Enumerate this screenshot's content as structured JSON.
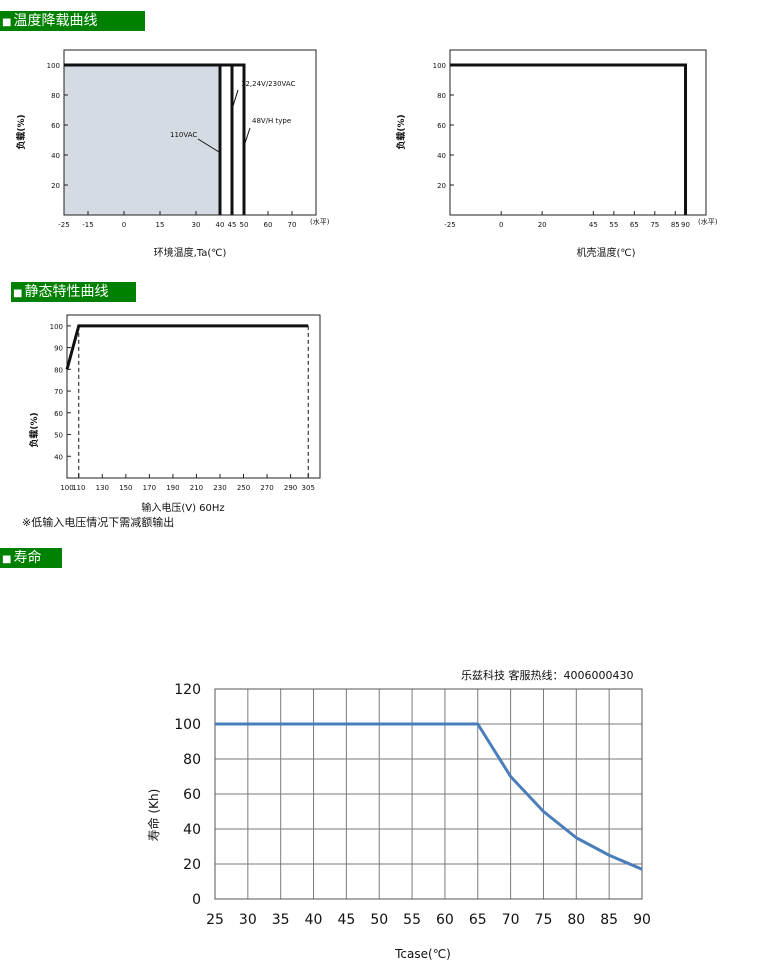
{
  "sections": {
    "temp_derating": "温度降载曲线",
    "static": "静态特性曲线",
    "life": "寿命"
  },
  "note": "※低输入电压情况下需减额输出",
  "brand": "乐兹科技 客服热线：4006000430",
  "chart_data": [
    {
      "type": "line",
      "xlabel": "环境温度,Ta(℃)",
      "ylabel": "负载(%)",
      "unit_note": "(水平)",
      "xlim": [
        -25,
        80
      ],
      "ylim": [
        0,
        110
      ],
      "xticks": [
        -25,
        -15,
        0,
        15,
        30,
        40,
        45,
        50,
        60,
        70
      ],
      "yticks": [
        20,
        40,
        60,
        80,
        100
      ],
      "series": [
        {
          "name": "110VAC",
          "points": [
            [
              -25,
              100
            ],
            [
              40,
              100
            ],
            [
              40,
              0
            ]
          ]
        },
        {
          "name": "12,24V/230VAC",
          "points": [
            [
              -25,
              100
            ],
            [
              45,
              100
            ],
            [
              45,
              0
            ]
          ]
        },
        {
          "name": "48V/H type",
          "points": [
            [
              -25,
              100
            ],
            [
              50,
              100
            ],
            [
              50,
              0
            ]
          ]
        }
      ],
      "fill_color": "#d5dbe3",
      "line_color": "#111111",
      "grid": false
    },
    {
      "type": "line",
      "xlabel": "机壳温度(℃)",
      "ylabel": "负载(%)",
      "unit_note": "(水平)",
      "xlim": [
        -25,
        100
      ],
      "ylim": [
        0,
        110
      ],
      "xticks": [
        -25,
        0,
        20,
        45,
        55,
        65,
        75,
        85,
        90
      ],
      "yticks": [
        20,
        40,
        60,
        80,
        100
      ],
      "series": [
        {
          "name": "",
          "points": [
            [
              -25,
              100
            ],
            [
              90,
              100
            ],
            [
              90,
              0
            ]
          ]
        }
      ],
      "line_color": "#111111",
      "grid": false
    },
    {
      "type": "line",
      "xlabel": "输入电压(V) 60Hz",
      "ylabel": "负载(%)",
      "xlim": [
        100,
        315
      ],
      "ylim": [
        30,
        105
      ],
      "xticks": [
        100,
        110,
        130,
        150,
        170,
        190,
        210,
        230,
        250,
        270,
        290,
        305
      ],
      "yticks": [
        40,
        50,
        60,
        70,
        80,
        90,
        100
      ],
      "series": [
        {
          "name": "",
          "points": [
            [
              100,
              80
            ],
            [
              110,
              100
            ],
            [
              305,
              100
            ]
          ]
        }
      ],
      "dashed_x": [
        110,
        305
      ],
      "line_color": "#111111",
      "grid": false
    },
    {
      "type": "line",
      "xlabel": "Tcase(℃)",
      "ylabel": "寿命 (Kh)",
      "xlim": [
        25,
        90
      ],
      "ylim": [
        0,
        120
      ],
      "xticks": [
        25,
        30,
        35,
        40,
        45,
        50,
        55,
        60,
        65,
        70,
        75,
        80,
        85,
        90
      ],
      "yticks": [
        0,
        20,
        40,
        60,
        80,
        100,
        120
      ],
      "series": [
        {
          "name": "",
          "x": [
            25,
            65,
            70,
            75,
            80,
            85,
            90
          ],
          "values": [
            100,
            100,
            70,
            50,
            35,
            25,
            17
          ]
        }
      ],
      "line_color": "#4a7ebb",
      "grid": true
    }
  ]
}
